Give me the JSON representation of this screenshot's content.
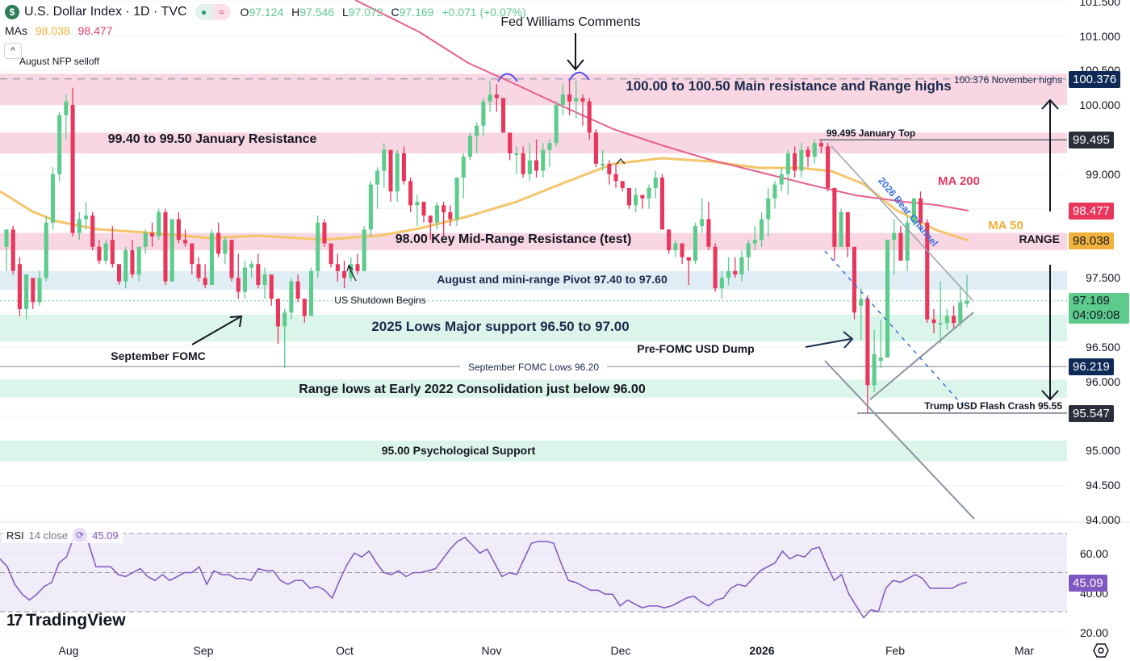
{
  "header": {
    "symbol_icon": "$",
    "title": "U.S. Dollar Index · 1D · TVC",
    "status_dot": "●",
    "status_wave": "≈",
    "ohlc": {
      "o_label": "O",
      "o": "97.124",
      "h_label": "H",
      "h": "97.546",
      "l_label": "L",
      "l": "97.072",
      "c_label": "C",
      "c": "97.169",
      "change": "+0.071 (+0.07%)"
    },
    "mas_label": "MAs",
    "ma50_value": "98.038",
    "ma200_value": "98.477",
    "collapse_icon": "^"
  },
  "rsi": {
    "label": "RSI",
    "params": "14 close",
    "value": "45.09",
    "axis": [
      "60.00",
      "40.00",
      "20.00"
    ]
  },
  "branding": {
    "logo_mark": "17",
    "logo_text": "TradingView"
  },
  "price_axis": [
    "101.500",
    "101.000",
    "100.500",
    "100.000",
    "99.000",
    "97.500",
    "96.500",
    "96.000",
    "95.000",
    "94.500",
    "94.000"
  ],
  "price_tags": {
    "nov_high": "100.376",
    "jan_top": "99.495",
    "ma200": "98.477",
    "ma50": "98.038",
    "last": "97.169",
    "countdown": "04:09:08",
    "sep_low": "96.219",
    "crash_low": "95.547"
  },
  "time_axis": [
    "Aug",
    "Sep",
    "Oct",
    "Nov",
    "Dec",
    "2026",
    "Feb",
    "Mar"
  ],
  "colors": {
    "up": "#5ccb8c",
    "down": "#e8365d",
    "ma50": "#f4c56b",
    "ma200": "#e8608a",
    "rsi": "#7e57c2",
    "resistance_zone": "#f8d7e3",
    "support_zone": "#dcf5ea",
    "pivot_zone": "#e1edf5",
    "label_dark": "#1a2a4d"
  },
  "annotations": {
    "nfp": "August NFP selloff",
    "fed_williams": "Fed Williams Comments",
    "main_resistance": "100.00 to 100.50 Main resistance and Range highs",
    "nov_highs": "100.376 November highs",
    "jan_resistance": "99.40 to 99.50 January Resistance",
    "jan_top": "99.495 January Top",
    "ma200": "MA 200",
    "ma50": "MA 50",
    "bear_channel": "2026 Bear Channel",
    "mid_range": "98.00 Key Mid-Range Resistance (test)",
    "range": "RANGE",
    "pivot": "August and mini-range Pivot 97.40 to 97.60",
    "shutdown": "US Shutdown Begins",
    "lows_2025": "2025 Lows Major support 96.50 to 97.00",
    "sep_fomc": "September FOMC",
    "pre_fomc": "Pre-FOMC USD Dump",
    "sep_fomc_lows": "September FOMC Lows 96.20",
    "range_lows": "Range lows at Early 2022 Consolidation just below 96.00",
    "flash_crash": "Trump USD Flash Crash 95.55",
    "psych": "95.00 Psychological Support"
  },
  "chart_data": {
    "type": "candlestick",
    "title": "U.S. Dollar Index · 1D · TVC",
    "xlabel": "",
    "ylabel": "Price",
    "ylim": [
      93.95,
      101.55
    ],
    "x_ticks": [
      "Aug",
      "Sep",
      "Oct",
      "Nov",
      "Dec",
      "2026",
      "Feb",
      "Mar"
    ],
    "last": {
      "open": 97.124,
      "high": 97.546,
      "low": 97.072,
      "close": 97.169,
      "change": 0.071,
      "change_pct": 0.07
    },
    "moving_averages": [
      {
        "name": "MA 50",
        "value": 98.038
      },
      {
        "name": "MA 200",
        "value": 98.477
      }
    ],
    "zones": [
      {
        "label": "100.00 to 100.50 Main resistance and Range highs",
        "from": 100.0,
        "to": 100.45,
        "kind": "resistance"
      },
      {
        "label": "99.40 to 99.50 January Resistance",
        "from": 99.3,
        "to": 99.6,
        "kind": "resistance"
      },
      {
        "label": "98.00 Key Mid-Range Resistance (test)",
        "from": 97.9,
        "to": 98.15,
        "kind": "resistance"
      },
      {
        "label": "August and mini-range Pivot 97.40 to 97.60",
        "from": 97.33,
        "to": 97.6,
        "kind": "pivot"
      },
      {
        "label": "2025 Lows Major support 96.50 to 97.00",
        "from": 96.58,
        "to": 96.97,
        "kind": "support"
      },
      {
        "label": "Range lows at Early 2022 Consolidation just below 96.00",
        "from": 95.77,
        "to": 96.03,
        "kind": "support"
      },
      {
        "label": "95.00 Psychological Support",
        "from": 94.85,
        "to": 95.15,
        "kind": "support"
      }
    ],
    "levels": [
      {
        "label": "100.376 November highs",
        "value": 100.376
      },
      {
        "label": "99.495 January Top",
        "value": 99.495
      },
      {
        "label": "September FOMC Lows 96.20",
        "value": 96.219
      },
      {
        "label": "Trump USD Flash Crash 95.55",
        "value": 95.547
      }
    ],
    "candles": [
      [
        97.95,
        98.2,
        97.6,
        98.2
      ],
      [
        98.2,
        98.25,
        97.55,
        97.6
      ],
      [
        97.7,
        97.8,
        96.95,
        97.05
      ],
      [
        97.05,
        97.5,
        96.9,
        97.55
      ],
      [
        97.5,
        97.3,
        97.05,
        97.15
      ],
      [
        97.15,
        97.6,
        97.1,
        97.5
      ],
      [
        97.5,
        98.4,
        97.45,
        98.3
      ],
      [
        98.3,
        99.1,
        98.2,
        99.0
      ],
      [
        99.0,
        99.9,
        98.9,
        99.85
      ],
      [
        99.85,
        100.15,
        99.5,
        100.05
      ],
      [
        100.0,
        100.25,
        98.1,
        98.15
      ],
      [
        98.15,
        98.45,
        98.05,
        98.35
      ],
      [
        98.35,
        98.6,
        98.2,
        98.4
      ],
      [
        98.4,
        98.45,
        97.9,
        97.95
      ],
      [
        97.95,
        98.05,
        97.7,
        97.75
      ],
      [
        97.75,
        98.05,
        97.7,
        98.0
      ],
      [
        98.05,
        98.25,
        97.65,
        97.7
      ],
      [
        97.7,
        97.6,
        97.4,
        97.45
      ],
      [
        97.45,
        97.95,
        97.35,
        97.9
      ],
      [
        97.9,
        98.05,
        97.5,
        97.55
      ],
      [
        97.55,
        97.95,
        97.45,
        97.95
      ],
      [
        97.95,
        98.2,
        97.85,
        98.15
      ],
      [
        98.15,
        98.3,
        97.95,
        98.1
      ],
      [
        98.1,
        98.5,
        98.05,
        98.45
      ],
      [
        98.45,
        98.5,
        97.4,
        97.45
      ],
      [
        97.45,
        98.35,
        97.45,
        98.35
      ],
      [
        98.35,
        98.45,
        98.0,
        98.05
      ],
      [
        98.05,
        98.2,
        97.95,
        98.0
      ],
      [
        98.0,
        97.95,
        97.55,
        97.7
      ],
      [
        97.7,
        97.8,
        97.45,
        97.5
      ],
      [
        97.5,
        97.7,
        97.35,
        97.4
      ],
      [
        97.4,
        98.2,
        97.4,
        98.15
      ],
      [
        98.15,
        98.3,
        97.8,
        97.85
      ],
      [
        97.85,
        98.1,
        97.7,
        98.05
      ],
      [
        98.05,
        98.0,
        97.45,
        97.5
      ],
      [
        97.5,
        97.85,
        97.2,
        97.3
      ],
      [
        97.3,
        97.75,
        97.2,
        97.65
      ],
      [
        97.65,
        97.75,
        97.5,
        97.7
      ],
      [
        97.7,
        97.85,
        97.35,
        97.4
      ],
      [
        97.4,
        97.65,
        97.2,
        97.55
      ],
      [
        97.55,
        97.4,
        97.1,
        97.2
      ],
      [
        97.2,
        97.2,
        96.55,
        96.8
      ],
      [
        96.8,
        97.05,
        96.2,
        97.0
      ],
      [
        97.0,
        97.5,
        96.9,
        97.45
      ],
      [
        97.45,
        97.55,
        97.15,
        97.2
      ],
      [
        97.2,
        97.0,
        96.85,
        96.95
      ],
      [
        96.95,
        97.65,
        96.95,
        97.6
      ],
      [
        97.6,
        98.4,
        97.5,
        98.3
      ],
      [
        98.3,
        98.35,
        97.95,
        98.0
      ],
      [
        98.0,
        98.0,
        97.65,
        97.7
      ],
      [
        97.7,
        97.85,
        97.45,
        97.6
      ],
      [
        97.6,
        97.75,
        97.35,
        97.5
      ],
      [
        97.5,
        97.8,
        97.45,
        97.7
      ],
      [
        97.7,
        97.85,
        97.55,
        97.6
      ],
      [
        97.6,
        98.25,
        97.6,
        98.2
      ],
      [
        98.2,
        98.9,
        98.1,
        98.85
      ],
      [
        98.85,
        99.1,
        98.5,
        99.05
      ],
      [
        99.05,
        99.45,
        98.8,
        99.35
      ],
      [
        99.35,
        99.35,
        98.6,
        98.75
      ],
      [
        98.75,
        99.35,
        98.6,
        99.3
      ],
      [
        99.3,
        99.4,
        98.85,
        98.9
      ],
      [
        98.9,
        98.95,
        98.45,
        98.55
      ],
      [
        98.55,
        98.7,
        98.25,
        98.6
      ],
      [
        98.6,
        98.55,
        98.3,
        98.4
      ],
      [
        98.4,
        98.4,
        98.05,
        98.3
      ],
      [
        98.3,
        98.6,
        98.2,
        98.55
      ],
      [
        98.55,
        98.6,
        98.1,
        98.45
      ],
      [
        98.45,
        98.55,
        98.25,
        98.35
      ],
      [
        98.35,
        98.95,
        98.25,
        98.95
      ],
      [
        98.95,
        99.3,
        98.65,
        99.25
      ],
      [
        99.25,
        99.6,
        99.2,
        99.55
      ],
      [
        99.55,
        99.75,
        99.3,
        99.7
      ],
      [
        99.7,
        100.1,
        99.55,
        100.05
      ],
      [
        100.05,
        100.35,
        99.9,
        100.15
      ],
      [
        100.15,
        100.3,
        99.9,
        100.1
      ],
      [
        100.1,
        100.05,
        99.6,
        99.6
      ],
      [
        99.6,
        99.55,
        99.2,
        99.3
      ],
      [
        99.3,
        99.4,
        99.0,
        99.3
      ],
      [
        99.3,
        99.4,
        98.95,
        99.0
      ],
      [
        99.0,
        99.45,
        98.9,
        99.2
      ],
      [
        99.2,
        99.5,
        98.95,
        99.05
      ],
      [
        99.05,
        99.45,
        98.95,
        99.35
      ],
      [
        99.35,
        99.5,
        99.1,
        99.45
      ],
      [
        99.45,
        100.05,
        99.4,
        100.0
      ],
      [
        100.0,
        100.3,
        99.85,
        100.15
      ],
      [
        100.15,
        100.35,
        99.85,
        100.05
      ],
      [
        100.05,
        100.35,
        99.8,
        100.1
      ],
      [
        100.1,
        100.15,
        99.7,
        100.05
      ],
      [
        100.05,
        100.1,
        99.5,
        99.6
      ],
      [
        99.6,
        99.65,
        99.1,
        99.15
      ],
      [
        99.15,
        99.35,
        99.05,
        99.15
      ],
      [
        99.15,
        99.2,
        98.85,
        99.0
      ],
      [
        99.0,
        99.15,
        98.8,
        98.9
      ],
      [
        98.9,
        98.85,
        98.75,
        98.8
      ],
      [
        98.8,
        98.75,
        98.5,
        98.55
      ],
      [
        98.55,
        98.8,
        98.45,
        98.7
      ],
      [
        98.7,
        98.7,
        98.5,
        98.65
      ],
      [
        98.65,
        98.85,
        98.5,
        98.8
      ],
      [
        98.8,
        99.05,
        98.65,
        98.95
      ],
      [
        98.95,
        99.0,
        98.2,
        98.2
      ],
      [
        98.2,
        98.15,
        97.85,
        97.9
      ],
      [
        97.9,
        98.05,
        97.8,
        98.0
      ],
      [
        98.0,
        97.95,
        97.7,
        97.8
      ],
      [
        97.8,
        97.8,
        97.4,
        97.75
      ],
      [
        97.75,
        98.3,
        97.7,
        98.25
      ],
      [
        98.25,
        98.65,
        98.15,
        98.35
      ],
      [
        98.35,
        98.6,
        97.9,
        97.95
      ],
      [
        97.95,
        98.0,
        97.3,
        97.35
      ],
      [
        97.35,
        97.6,
        97.2,
        97.5
      ],
      [
        97.5,
        97.8,
        97.4,
        97.6
      ],
      [
        97.6,
        97.8,
        97.5,
        97.55
      ],
      [
        97.55,
        97.9,
        97.45,
        97.8
      ],
      [
        97.8,
        98.05,
        97.6,
        98.0
      ],
      [
        98.0,
        98.25,
        97.9,
        98.05
      ],
      [
        98.05,
        98.45,
        97.95,
        98.35
      ],
      [
        98.35,
        98.8,
        98.1,
        98.65
      ],
      [
        98.65,
        98.9,
        98.5,
        98.85
      ],
      [
        98.85,
        99.1,
        98.75,
        99.0
      ],
      [
        99.0,
        99.35,
        98.7,
        99.3
      ],
      [
        99.3,
        99.4,
        98.95,
        99.05
      ],
      [
        99.05,
        99.45,
        98.95,
        99.35
      ],
      [
        99.35,
        99.4,
        99.1,
        99.25
      ],
      [
        99.25,
        99.5,
        99.15,
        99.45
      ],
      [
        99.45,
        99.5,
        99.3,
        99.4
      ],
      [
        99.4,
        99.45,
        98.75,
        98.8
      ],
      [
        98.8,
        98.8,
        97.75,
        97.95
      ],
      [
        97.95,
        98.5,
        97.95,
        98.45
      ],
      [
        98.45,
        98.45,
        97.8,
        97.95
      ],
      [
        97.95,
        97.95,
        96.9,
        97.0
      ],
      [
        97.1,
        97.35,
        96.6,
        97.2
      ],
      [
        97.2,
        97.25,
        95.55,
        95.95
      ],
      [
        95.95,
        96.75,
        95.85,
        96.4
      ],
      [
        96.3,
        96.9,
        96.2,
        96.35
      ],
      [
        96.35,
        98.05,
        96.35,
        98.05
      ],
      [
        98.05,
        98.35,
        97.55,
        98.15
      ],
      [
        98.15,
        98.25,
        97.85,
        97.75
      ],
      [
        97.75,
        98.4,
        97.6,
        98.3
      ],
      [
        98.3,
        98.65,
        98.25,
        98.65
      ],
      [
        98.65,
        98.75,
        98.2,
        98.3
      ],
      [
        98.3,
        98.35,
        96.85,
        96.9
      ],
      [
        96.9,
        97.05,
        96.7,
        96.85
      ],
      [
        96.85,
        97.45,
        96.55,
        96.85
      ],
      [
        96.85,
        97.05,
        96.75,
        96.95
      ],
      [
        96.95,
        97.1,
        96.75,
        96.85
      ],
      [
        96.85,
        97.35,
        96.8,
        97.15
      ],
      [
        97.124,
        97.546,
        97.072,
        97.169
      ]
    ],
    "rsi": {
      "name": "RSI 14 close",
      "last": 45.09,
      "ylim": [
        15,
        72
      ],
      "bands": [
        30,
        50,
        70
      ],
      "ticks": [
        60,
        40,
        20
      ]
    }
  }
}
